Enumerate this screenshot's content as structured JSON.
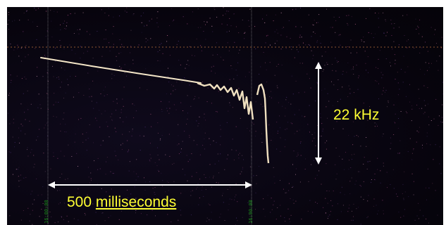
{
  "annotations": {
    "time_label_number": "500",
    "time_label_unit": "milliseconds",
    "freq_label": "22 kHz"
  },
  "time_markers": {
    "left_tick": "16:00:00",
    "right_tick": "16:00:00"
  },
  "colors": {
    "background": "#07040d",
    "annotation_text": "#ffff33",
    "arrows": "#ffffff",
    "trace": "#f4e6c8",
    "noise": "#b04b8a",
    "reference_line": "#b06a3a",
    "tick_labels": "#1a8a1a"
  }
}
